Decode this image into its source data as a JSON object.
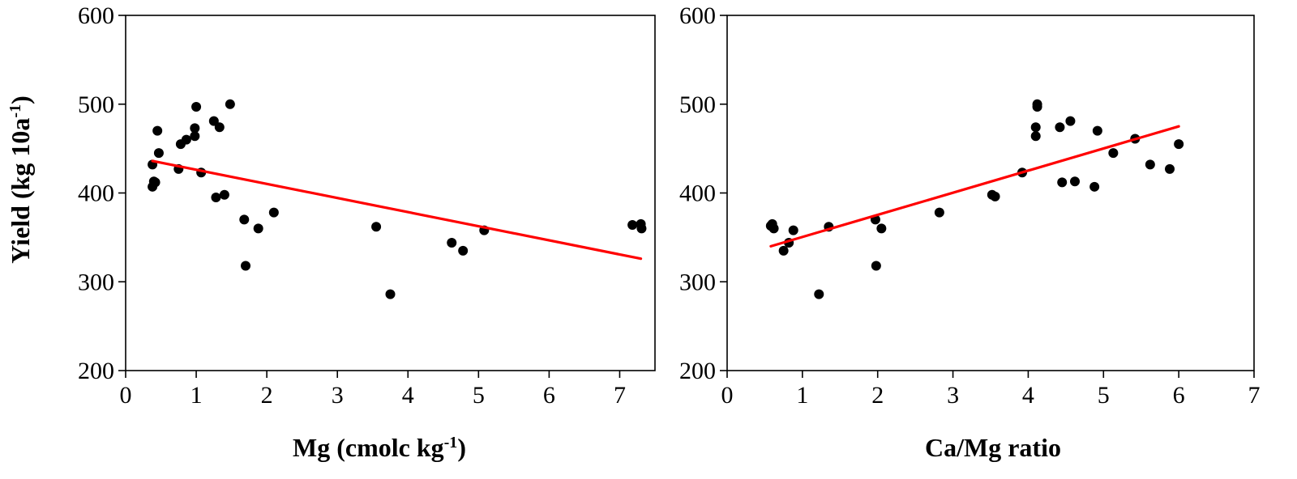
{
  "y_axis_title": "Yield (kg 10a",
  "y_axis_title_sup": "-1",
  "y_axis_title_end": ")",
  "chart_data": [
    {
      "type": "scatter",
      "name": "mg",
      "title": "",
      "xlabel": "Mg (cmolc kg",
      "xlabel_sup": "-1",
      "xlabel_end": ")",
      "ylabel": "Yield (kg 10a-1)",
      "xlim": [
        0,
        7.5
      ],
      "ylim": [
        200,
        600
      ],
      "xticks": [
        "0",
        "1",
        "2",
        "3",
        "4",
        "5",
        "6",
        "7"
      ],
      "yticks": [
        "200",
        "300",
        "400",
        "500",
        "600"
      ],
      "grid": false,
      "points": [
        [
          0.38,
          432
        ],
        [
          0.38,
          407
        ],
        [
          0.4,
          413
        ],
        [
          0.42,
          412
        ],
        [
          0.45,
          470
        ],
        [
          0.47,
          445
        ],
        [
          0.75,
          427
        ],
        [
          0.78,
          455
        ],
        [
          0.86,
          460
        ],
        [
          0.98,
          473
        ],
        [
          0.98,
          464
        ],
        [
          1.0,
          497
        ],
        [
          1.07,
          423
        ],
        [
          1.25,
          481
        ],
        [
          1.28,
          395
        ],
        [
          1.33,
          474
        ],
        [
          1.4,
          398
        ],
        [
          1.48,
          500
        ],
        [
          1.68,
          370
        ],
        [
          1.7,
          318
        ],
        [
          1.88,
          360
        ],
        [
          2.1,
          378
        ],
        [
          3.55,
          362
        ],
        [
          3.75,
          286
        ],
        [
          4.62,
          344
        ],
        [
          4.78,
          335
        ],
        [
          5.08,
          358
        ],
        [
          7.18,
          364
        ],
        [
          7.3,
          365
        ],
        [
          7.31,
          360
        ]
      ],
      "trendline": {
        "x": [
          0.38,
          7.3
        ],
        "y": [
          436,
          326
        ],
        "color": "#ff0000"
      },
      "marker_color": "#000000"
    },
    {
      "type": "scatter",
      "name": "camg",
      "title": "",
      "xlabel": "Ca/Mg ratio",
      "xlabel_sup": "",
      "xlabel_end": "",
      "ylabel": "Yield (kg 10a-1)",
      "xlim": [
        0,
        7
      ],
      "ylim": [
        200,
        600
      ],
      "xticks": [
        "0",
        "1",
        "2",
        "3",
        "4",
        "5",
        "6",
        "7"
      ],
      "yticks": [
        "200",
        "300",
        "400",
        "500",
        "600"
      ],
      "grid": false,
      "points": [
        [
          0.58,
          363
        ],
        [
          0.6,
          365
        ],
        [
          0.62,
          360
        ],
        [
          0.75,
          335
        ],
        [
          0.82,
          344
        ],
        [
          0.88,
          358
        ],
        [
          1.22,
          286
        ],
        [
          1.35,
          362
        ],
        [
          1.97,
          370
        ],
        [
          1.98,
          318
        ],
        [
          2.05,
          360
        ],
        [
          2.82,
          378
        ],
        [
          3.52,
          398
        ],
        [
          3.56,
          396
        ],
        [
          3.92,
          423
        ],
        [
          4.1,
          474
        ],
        [
          4.1,
          464
        ],
        [
          4.12,
          500
        ],
        [
          4.12,
          497
        ],
        [
          4.42,
          474
        ],
        [
          4.45,
          412
        ],
        [
          4.56,
          481
        ],
        [
          4.62,
          413
        ],
        [
          4.88,
          407
        ],
        [
          4.92,
          470
        ],
        [
          5.13,
          445
        ],
        [
          5.42,
          461
        ],
        [
          5.62,
          432
        ],
        [
          5.88,
          427
        ],
        [
          6.0,
          455
        ]
      ],
      "trendline": {
        "x": [
          0.58,
          6.0
        ],
        "y": [
          340,
          475
        ],
        "color": "#ff0000"
      },
      "marker_color": "#000000"
    }
  ]
}
